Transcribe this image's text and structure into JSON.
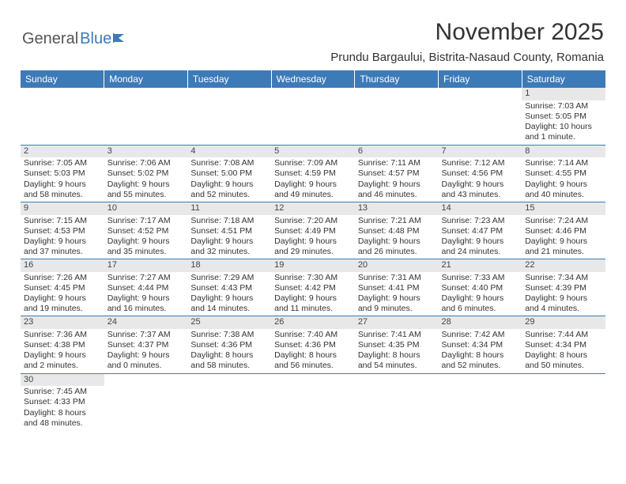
{
  "logo": {
    "word1": "General",
    "word2": "Blue",
    "icon_color": "#3d7ab8"
  },
  "header": {
    "title": "November 2025",
    "location": "Prundu Bargaului, Bistrita-Nasaud County, Romania",
    "title_fontsize": 30,
    "location_fontsize": 15
  },
  "colors": {
    "header_bg": "#3d7ab8",
    "header_fg": "#ffffff",
    "row_divider": "#3d7ab8",
    "daynum_bg": "#e8e8e8",
    "text": "#333333",
    "page_bg": "#ffffff"
  },
  "dayHeaders": [
    "Sunday",
    "Monday",
    "Tuesday",
    "Wednesday",
    "Thursday",
    "Friday",
    "Saturday"
  ],
  "weeks": [
    [
      null,
      null,
      null,
      null,
      null,
      null,
      {
        "n": "1",
        "sr": "Sunrise: 7:03 AM",
        "ss": "Sunset: 5:05 PM",
        "dl": "Daylight: 10 hours and 1 minute."
      }
    ],
    [
      {
        "n": "2",
        "sr": "Sunrise: 7:05 AM",
        "ss": "Sunset: 5:03 PM",
        "dl": "Daylight: 9 hours and 58 minutes."
      },
      {
        "n": "3",
        "sr": "Sunrise: 7:06 AM",
        "ss": "Sunset: 5:02 PM",
        "dl": "Daylight: 9 hours and 55 minutes."
      },
      {
        "n": "4",
        "sr": "Sunrise: 7:08 AM",
        "ss": "Sunset: 5:00 PM",
        "dl": "Daylight: 9 hours and 52 minutes."
      },
      {
        "n": "5",
        "sr": "Sunrise: 7:09 AM",
        "ss": "Sunset: 4:59 PM",
        "dl": "Daylight: 9 hours and 49 minutes."
      },
      {
        "n": "6",
        "sr": "Sunrise: 7:11 AM",
        "ss": "Sunset: 4:57 PM",
        "dl": "Daylight: 9 hours and 46 minutes."
      },
      {
        "n": "7",
        "sr": "Sunrise: 7:12 AM",
        "ss": "Sunset: 4:56 PM",
        "dl": "Daylight: 9 hours and 43 minutes."
      },
      {
        "n": "8",
        "sr": "Sunrise: 7:14 AM",
        "ss": "Sunset: 4:55 PM",
        "dl": "Daylight: 9 hours and 40 minutes."
      }
    ],
    [
      {
        "n": "9",
        "sr": "Sunrise: 7:15 AM",
        "ss": "Sunset: 4:53 PM",
        "dl": "Daylight: 9 hours and 37 minutes."
      },
      {
        "n": "10",
        "sr": "Sunrise: 7:17 AM",
        "ss": "Sunset: 4:52 PM",
        "dl": "Daylight: 9 hours and 35 minutes."
      },
      {
        "n": "11",
        "sr": "Sunrise: 7:18 AM",
        "ss": "Sunset: 4:51 PM",
        "dl": "Daylight: 9 hours and 32 minutes."
      },
      {
        "n": "12",
        "sr": "Sunrise: 7:20 AM",
        "ss": "Sunset: 4:49 PM",
        "dl": "Daylight: 9 hours and 29 minutes."
      },
      {
        "n": "13",
        "sr": "Sunrise: 7:21 AM",
        "ss": "Sunset: 4:48 PM",
        "dl": "Daylight: 9 hours and 26 minutes."
      },
      {
        "n": "14",
        "sr": "Sunrise: 7:23 AM",
        "ss": "Sunset: 4:47 PM",
        "dl": "Daylight: 9 hours and 24 minutes."
      },
      {
        "n": "15",
        "sr": "Sunrise: 7:24 AM",
        "ss": "Sunset: 4:46 PM",
        "dl": "Daylight: 9 hours and 21 minutes."
      }
    ],
    [
      {
        "n": "16",
        "sr": "Sunrise: 7:26 AM",
        "ss": "Sunset: 4:45 PM",
        "dl": "Daylight: 9 hours and 19 minutes."
      },
      {
        "n": "17",
        "sr": "Sunrise: 7:27 AM",
        "ss": "Sunset: 4:44 PM",
        "dl": "Daylight: 9 hours and 16 minutes."
      },
      {
        "n": "18",
        "sr": "Sunrise: 7:29 AM",
        "ss": "Sunset: 4:43 PM",
        "dl": "Daylight: 9 hours and 14 minutes."
      },
      {
        "n": "19",
        "sr": "Sunrise: 7:30 AM",
        "ss": "Sunset: 4:42 PM",
        "dl": "Daylight: 9 hours and 11 minutes."
      },
      {
        "n": "20",
        "sr": "Sunrise: 7:31 AM",
        "ss": "Sunset: 4:41 PM",
        "dl": "Daylight: 9 hours and 9 minutes."
      },
      {
        "n": "21",
        "sr": "Sunrise: 7:33 AM",
        "ss": "Sunset: 4:40 PM",
        "dl": "Daylight: 9 hours and 6 minutes."
      },
      {
        "n": "22",
        "sr": "Sunrise: 7:34 AM",
        "ss": "Sunset: 4:39 PM",
        "dl": "Daylight: 9 hours and 4 minutes."
      }
    ],
    [
      {
        "n": "23",
        "sr": "Sunrise: 7:36 AM",
        "ss": "Sunset: 4:38 PM",
        "dl": "Daylight: 9 hours and 2 minutes."
      },
      {
        "n": "24",
        "sr": "Sunrise: 7:37 AM",
        "ss": "Sunset: 4:37 PM",
        "dl": "Daylight: 9 hours and 0 minutes."
      },
      {
        "n": "25",
        "sr": "Sunrise: 7:38 AM",
        "ss": "Sunset: 4:36 PM",
        "dl": "Daylight: 8 hours and 58 minutes."
      },
      {
        "n": "26",
        "sr": "Sunrise: 7:40 AM",
        "ss": "Sunset: 4:36 PM",
        "dl": "Daylight: 8 hours and 56 minutes."
      },
      {
        "n": "27",
        "sr": "Sunrise: 7:41 AM",
        "ss": "Sunset: 4:35 PM",
        "dl": "Daylight: 8 hours and 54 minutes."
      },
      {
        "n": "28",
        "sr": "Sunrise: 7:42 AM",
        "ss": "Sunset: 4:34 PM",
        "dl": "Daylight: 8 hours and 52 minutes."
      },
      {
        "n": "29",
        "sr": "Sunrise: 7:44 AM",
        "ss": "Sunset: 4:34 PM",
        "dl": "Daylight: 8 hours and 50 minutes."
      }
    ],
    [
      {
        "n": "30",
        "sr": "Sunrise: 7:45 AM",
        "ss": "Sunset: 4:33 PM",
        "dl": "Daylight: 8 hours and 48 minutes."
      },
      null,
      null,
      null,
      null,
      null,
      null
    ]
  ]
}
